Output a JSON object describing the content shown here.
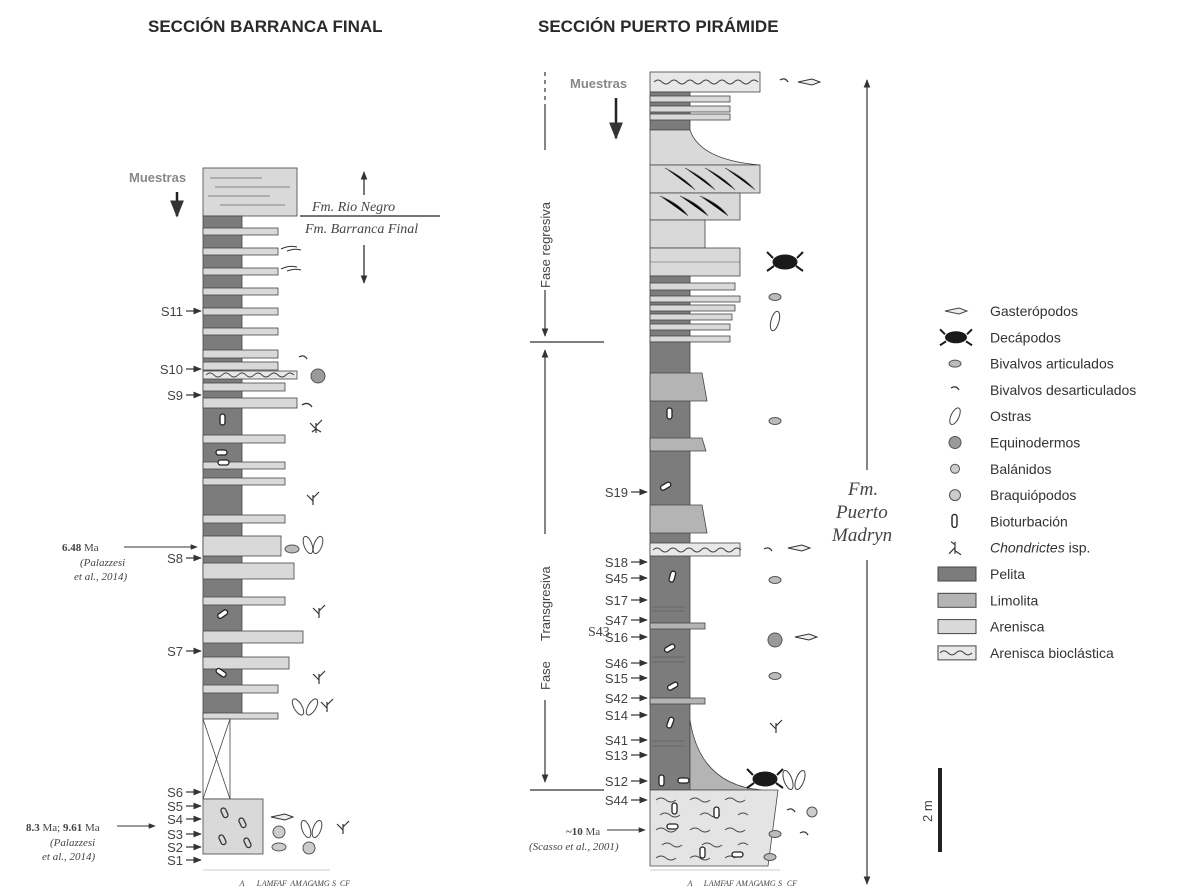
{
  "titles": {
    "left": "SECCIÓN BARRANCA FINAL",
    "right": "SECCIÓN PUERTO PIRÁMIDE"
  },
  "barranca": {
    "muestras": "Muestras",
    "fm_upper": "Fm. Rio Negro",
    "fm_lower": "Fm. Barranca Final",
    "samples": [
      "S11",
      "S10",
      "S9",
      "S8",
      "S7",
      "S6",
      "S5",
      "S4",
      "S3",
      "S2",
      "S1"
    ],
    "age1": {
      "value": "6.48",
      "unit": "Ma",
      "ref1": "(Palazzesi",
      "ref2": "et al., 2014)"
    },
    "age2": {
      "value1": "8.3",
      "unit1": "Ma;",
      "value2": "9.61",
      "unit2": "Ma",
      "ref1": "(Palazzesi",
      "ref2": "et al., 2014)"
    },
    "grain_ticks": [
      "A",
      "L",
      "AMF",
      "AF",
      "AM",
      "AG",
      "AMG",
      "S",
      "CF"
    ]
  },
  "puerto": {
    "muestras": "Muestras",
    "fase_regresiva": "Fase regresiva",
    "fase": "Fase",
    "transgresiva": "Transgresiva",
    "fm_line1": "Fm.",
    "fm_line2": "Puerto",
    "fm_line3": "Madryn",
    "samples": [
      "S19",
      "S18",
      "S45",
      "S17",
      "S47",
      "S16",
      "S46",
      "S15",
      "S42",
      "S14",
      "S41",
      "S13",
      "S12",
      "S44"
    ],
    "s43": "S43",
    "age": {
      "value": "~10",
      "unit": "Ma",
      "ref": "(Scasso et al., 2001)"
    },
    "scale": "2 m",
    "grain_ticks": [
      "A",
      "L",
      "AMF",
      "AF",
      "AM",
      "AG",
      "AMG",
      "S",
      "CF"
    ]
  },
  "legend": {
    "items": [
      {
        "label": "Gasterópodos",
        "icon": "gastropod-icon"
      },
      {
        "label": "Decápodos",
        "icon": "crab-icon"
      },
      {
        "label": "Bivalvos articulados",
        "icon": "articulated-bivalve-icon"
      },
      {
        "label": "Bivalvos desarticulados",
        "icon": "disarticulated-bivalve-icon"
      },
      {
        "label": "Ostras",
        "icon": "oyster-icon"
      },
      {
        "label": "Equinodermos",
        "icon": "echinoderm-icon"
      },
      {
        "label": "Balánidos",
        "icon": "barnacle-icon"
      },
      {
        "label": "Braquiópodos",
        "icon": "brachiopod-icon"
      },
      {
        "label": "Bioturbación",
        "icon": "bioturbation-icon"
      },
      {
        "label_italic": "Chondrictes",
        "label_rest": " isp.",
        "icon": "chondrites-icon"
      },
      {
        "label": "Pelita",
        "icon": "pelite-swatch"
      },
      {
        "label": "Limolita",
        "icon": "siltstone-swatch"
      },
      {
        "label": "Arenisca",
        "icon": "sandstone-swatch"
      },
      {
        "label": "Arenisca bioclástica",
        "icon": "bioclastic-sandstone-swatch"
      }
    ]
  },
  "colors": {
    "pelita": "#7c7c7c",
    "limolita": "#b4b4b4",
    "arenisca": "#d9d9d9",
    "line": "#333333"
  }
}
